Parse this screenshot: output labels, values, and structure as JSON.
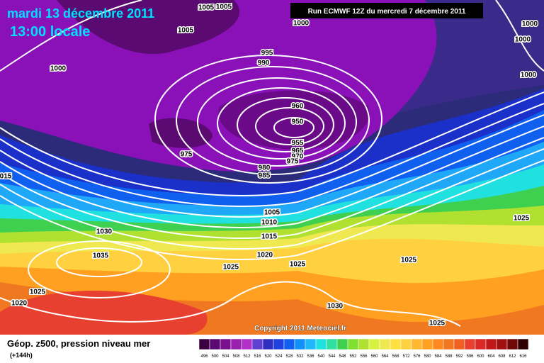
{
  "header": {
    "title": "mardi 13 décembre 2011",
    "time": "13:00 locale",
    "run": "Run ECMWF 12Z du mercredi 7 décembre 2011"
  },
  "isobar_labels": [
    1005,
    1005,
    1000,
    1005,
    1000,
    995,
    990,
    960,
    950,
    955,
    965,
    970,
    975,
    975,
    980,
    985,
    "015",
    1005,
    1010,
    1015,
    1020,
    1025,
    1025,
    1030,
    1035,
    1025,
    1020,
    1030,
    1025,
    1025,
    1025,
    1000,
    1000,
    1000
  ],
  "footer": {
    "title": "Géop. z500, pression niveau mer",
    "lead": "(+144h)",
    "copyright": "Copyright 2011 Meteociel.fr"
  },
  "scale_labels": [
    496,
    500,
    504,
    508,
    512,
    516,
    520,
    524,
    528,
    532,
    536,
    540,
    544,
    548,
    552,
    556,
    560,
    564,
    568,
    572,
    576,
    580,
    584,
    588,
    592,
    596,
    600,
    604,
    608,
    612,
    616
  ]
}
